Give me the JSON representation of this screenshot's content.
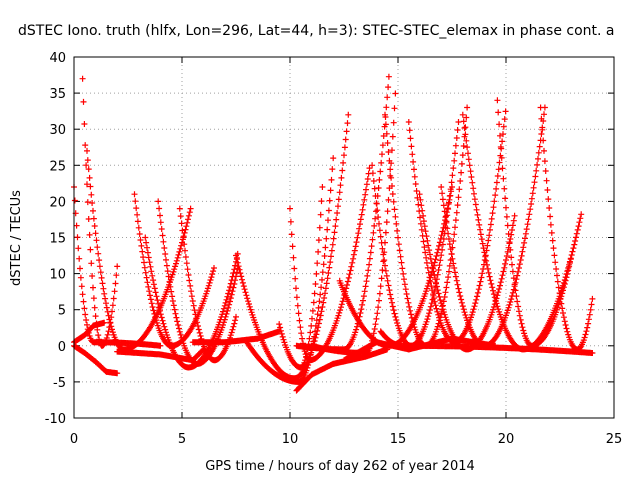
{
  "chart_data": {
    "type": "scatter",
    "title": "dSTEC Iono. truth (hlfx, Lon=296, Lat=44, h=3): STEC-STEC_elemax in phase cont. a",
    "xlabel": "GPS time / hours of day 262 of year 2014",
    "ylabel": "dSTEC  / TECUs",
    "xlim": [
      0,
      25
    ],
    "ylim": [
      -10,
      40
    ],
    "xticks": [
      0,
      5,
      10,
      15,
      20,
      25
    ],
    "yticks": [
      -10,
      -5,
      0,
      5,
      10,
      15,
      20,
      25,
      30,
      35,
      40
    ],
    "x_tick_labels": [
      "0",
      "5",
      "10",
      "15",
      "20",
      "25"
    ],
    "y_tick_labels": [
      "-10",
      "-5",
      "0",
      "5",
      "10",
      "15",
      "20",
      "25",
      "30",
      "35",
      "40"
    ],
    "grid": true,
    "marker": "+",
    "marker_color": "#ff0000",
    "arcs": [
      {
        "start": 0.0,
        "min_t": 0.9,
        "end": 4.0,
        "v_start": 22,
        "v_min": 0.5,
        "v_end": 0.0
      },
      {
        "start": 0.4,
        "min_t": 1.3,
        "end": 2.0,
        "v_start": 37,
        "v_min": 0.0,
        "v_end": 11
      },
      {
        "start": 0.6,
        "min_t": 2.3,
        "end": 5.4,
        "v_start": 27,
        "v_min": -0.5,
        "v_end": 19
      },
      {
        "start": 2.8,
        "min_t": 4.5,
        "end": 6.5,
        "v_start": 21,
        "v_min": 0.0,
        "v_end": 11
      },
      {
        "start": 3.3,
        "min_t": 5.3,
        "end": 7.6,
        "v_start": 15,
        "v_min": -3.0,
        "v_end": 13
      },
      {
        "start": 3.9,
        "min_t": 5.7,
        "end": 7.6,
        "v_start": 20,
        "v_min": -2.5,
        "v_end": 11
      },
      {
        "start": 4.9,
        "min_t": 6.5,
        "end": 7.5,
        "v_start": 19,
        "v_min": -2.0,
        "v_end": 4
      },
      {
        "start": 7.5,
        "min_t": 10.2,
        "end": 12.7,
        "v_start": 12.5,
        "v_min": -4.5,
        "v_end": 32
      },
      {
        "start": 8.0,
        "min_t": 10.4,
        "end": 12.0,
        "v_start": 0.5,
        "v_min": -5.0,
        "v_end": 26
      },
      {
        "start": 9.5,
        "min_t": 10.5,
        "end": 11.5,
        "v_start": 3.0,
        "v_min": -3.0,
        "v_end": 22
      },
      {
        "start": 10.0,
        "min_t": 10.9,
        "end": 13.7,
        "v_start": 19,
        "v_min": -2.0,
        "v_end": 25
      },
      {
        "start": 10.3,
        "min_t": 12.5,
        "end": 14.6,
        "v_start": 0.0,
        "v_min": -0.5,
        "v_end": 38
      },
      {
        "start": 11.0,
        "min_t": 13.5,
        "end": 14.9,
        "v_start": 0.0,
        "v_min": -1.0,
        "v_end": 36
      },
      {
        "start": 12.3,
        "min_t": 14.6,
        "end": 17.5,
        "v_start": 9,
        "v_min": 0.0,
        "v_end": 22
      },
      {
        "start": 13.8,
        "min_t": 15.6,
        "end": 17.8,
        "v_start": 25,
        "v_min": 0.0,
        "v_end": 31
      },
      {
        "start": 14.4,
        "min_t": 16.3,
        "end": 18.2,
        "v_start": 32,
        "v_min": 0.0,
        "v_end": 33
      },
      {
        "start": 15.5,
        "min_t": 17.6,
        "end": 20.0,
        "v_start": 31,
        "v_min": 0.5,
        "v_end": 33
      },
      {
        "start": 16.0,
        "min_t": 18.2,
        "end": 20.4,
        "v_start": 21,
        "v_min": -0.5,
        "v_end": 18
      },
      {
        "start": 17.0,
        "min_t": 19.0,
        "end": 21.8,
        "v_start": 22,
        "v_min": 0.0,
        "v_end": 33
      },
      {
        "start": 18.0,
        "min_t": 20.8,
        "end": 23.5,
        "v_start": 32,
        "v_min": -0.5,
        "v_end": 18.5
      },
      {
        "start": 19.6,
        "min_t": 21.2,
        "end": 23.0,
        "v_start": 34,
        "v_min": 0.0,
        "v_end": 12
      },
      {
        "start": 21.6,
        "min_t": 23.3,
        "end": 24.0,
        "v_start": 33,
        "v_min": -0.5,
        "v_end": 6.5
      },
      {
        "start": 14.2,
        "min_t": 15.2,
        "end": 24.0,
        "v_start": 2.0,
        "v_min": 0.0,
        "v_end": -1.0
      }
    ],
    "trails": [
      {
        "points": [
          [
            0.0,
            0.0
          ],
          [
            0.5,
            -1.0
          ],
          [
            1.0,
            -2.2
          ],
          [
            1.5,
            -3.6
          ],
          [
            2.0,
            -3.8
          ]
        ]
      },
      {
        "points": [
          [
            0.0,
            0.5
          ],
          [
            0.5,
            1.5
          ],
          [
            0.9,
            2.8
          ],
          [
            1.4,
            3.2
          ]
        ]
      },
      {
        "points": [
          [
            2.0,
            -0.8
          ],
          [
            4.0,
            -1.2
          ],
          [
            5.5,
            -2.0
          ],
          [
            6.0,
            -0.5
          ]
        ]
      },
      {
        "points": [
          [
            5.5,
            0.5
          ],
          [
            7.0,
            0.5
          ],
          [
            8.5,
            1.0
          ],
          [
            9.5,
            2.0
          ]
        ]
      },
      {
        "points": [
          [
            10.3,
            -6.2
          ],
          [
            11.0,
            -4.0
          ],
          [
            12.0,
            -2.5
          ],
          [
            13.5,
            -1.5
          ],
          [
            14.5,
            -0.5
          ]
        ]
      },
      {
        "points": [
          [
            12.5,
            -2.0
          ],
          [
            14.0,
            0.5
          ],
          [
            15.5,
            -0.5
          ],
          [
            17.5,
            1.0
          ],
          [
            19.5,
            0.0
          ]
        ]
      }
    ]
  }
}
